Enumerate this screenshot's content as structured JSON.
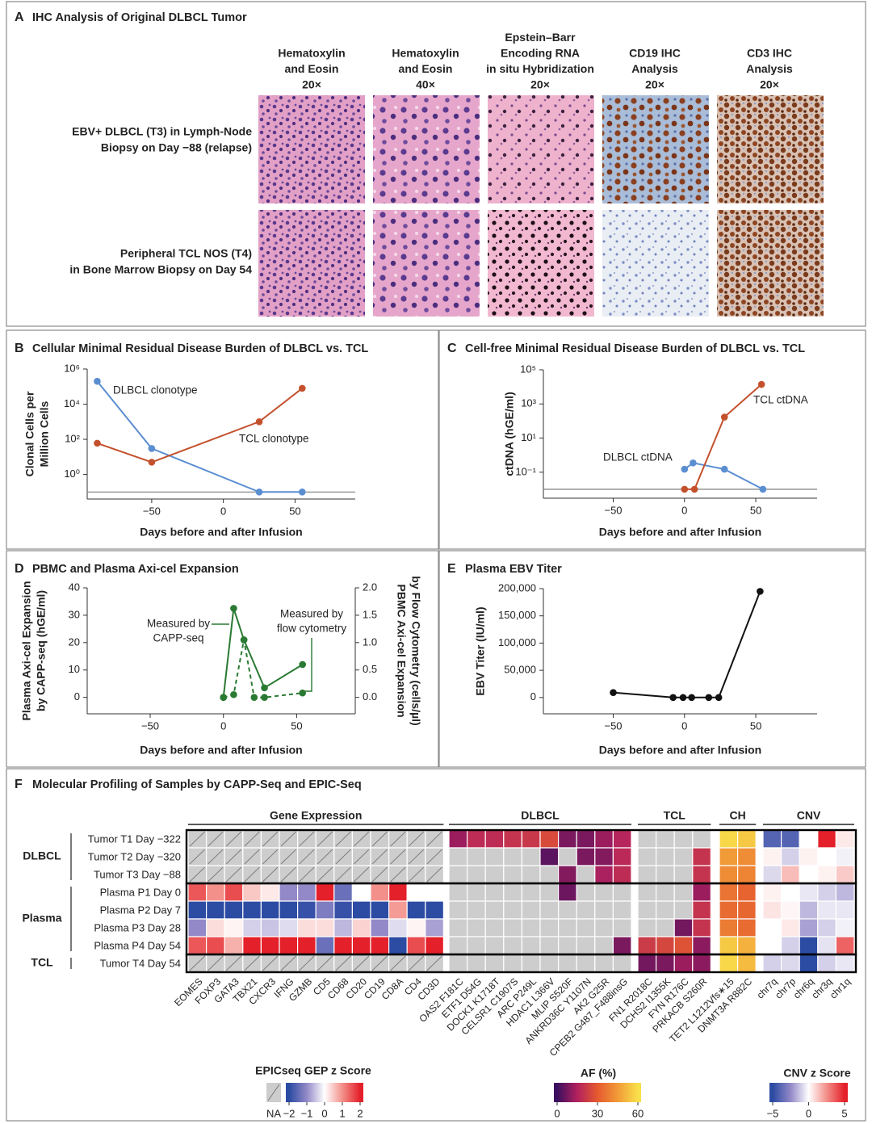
{
  "panel_a": {
    "letter": "A",
    "title": "IHC Analysis of Original DLBCL Tumor",
    "columns": [
      [
        "Hematoxylin",
        "and Eosin",
        "20×"
      ],
      [
        "Hematoxylin",
        "and Eosin",
        "40×"
      ],
      [
        "Epstein–Barr",
        "Encoding RNA",
        "in situ Hybridization",
        "20×"
      ],
      [
        "CD19 IHC",
        "Analysis",
        "20×"
      ],
      [
        "CD3 IHC",
        "Analysis",
        "20×"
      ]
    ],
    "rows": [
      [
        "EBV+ DLBCL (T3) in Lymph-Node",
        "Biopsy on Day −88 (relapse)"
      ],
      [
        "Peripheral TCL NOS (T4)",
        "in Bone Marrow Biopsy on Day 54"
      ]
    ]
  },
  "chart_data": [
    {
      "type": "line",
      "panel": "B",
      "title": "Cellular Minimal Residual Disease Burden of DLBCL vs. TCL",
      "xlabel": "Days before and after Infusion",
      "ylabel": [
        "Clonal Cells per",
        "Million Cells"
      ],
      "xlim": [
        -95,
        92
      ],
      "xticks": [
        {
          "value": -50,
          "label": "−50"
        },
        0,
        50
      ],
      "yscale": "log",
      "ylim": [
        0.04,
        1000000
      ],
      "yticks": [
        {
          "value": 1,
          "label": "10⁰"
        },
        {
          "value": 100,
          "label": "10²"
        },
        {
          "value": 10000,
          "label": "10⁴"
        },
        {
          "value": 1000000,
          "label": "10⁶"
        }
      ],
      "hline": 0.1,
      "series": [
        {
          "name": "DLBCL clonotype",
          "color": "#5b8ed1",
          "x": [
            -88,
            -50,
            25,
            55
          ],
          "values": [
            200000,
            30,
            0.1,
            0.1
          ]
        },
        {
          "name": "TCL clonotype",
          "color": "#c4512d",
          "x": [
            -88,
            -50,
            25,
            55
          ],
          "values": [
            60,
            5,
            1000,
            80000
          ]
        }
      ]
    },
    {
      "type": "line",
      "panel": "C",
      "title": "Cell-free Minimal Residual Disease Burden of DLBCL vs. TCL",
      "xlabel": "Days before and after Infusion",
      "ylabel": [
        "ctDNA (hGE/ml)"
      ],
      "xlim": [
        -99,
        93
      ],
      "xticks": [
        {
          "value": -50,
          "label": "−50"
        },
        0,
        50
      ],
      "yscale": "log",
      "ylim": [
        0.003,
        100000
      ],
      "yticks": [
        {
          "value": 0.1,
          "label": "10⁻¹"
        },
        {
          "value": 10,
          "label": "10¹"
        },
        {
          "value": 1000,
          "label": "10³"
        },
        {
          "value": 100000,
          "label": "10⁵"
        }
      ],
      "hline": 0.01,
      "series": [
        {
          "name": "DLBCL ctDNA",
          "color": "#5b8ed1",
          "x": [
            0,
            6,
            28,
            55
          ],
          "values": [
            0.15,
            0.35,
            0.15,
            0.01
          ]
        },
        {
          "name": "TCL ctDNA",
          "color": "#c4512d",
          "x": [
            0,
            7,
            28,
            54
          ],
          "values": [
            0.01,
            0.01,
            170,
            14000
          ]
        }
      ]
    },
    {
      "type": "line",
      "panel": "D",
      "title": "PBMC and Plasma Axi-cel Expansion",
      "xlabel": "Days before and after Infusion",
      "ylabel": [
        "Plasma Axi-cel Expansion",
        "by CAPP-seq (hGE/ml)"
      ],
      "y2label": [
        "PBMC Axi-cel Expansion",
        "by Flow Cytometry (cells/µl)"
      ],
      "xlim": [
        -93,
        90
      ],
      "xticks": [
        {
          "value": -50,
          "label": "−50"
        },
        0,
        50
      ],
      "ylim": [
        -6,
        40
      ],
      "yticks": [
        0,
        10,
        20,
        30,
        40
      ],
      "y2lim": [
        -0.3,
        2.0
      ],
      "y2ticks": [
        {
          "value": 0,
          "label": "0.0"
        },
        {
          "value": 0.5,
          "label": "0.5"
        },
        {
          "value": 1,
          "label": "1.0"
        },
        {
          "value": 1.5,
          "label": "1.5"
        },
        {
          "value": 2,
          "label": "2.0"
        }
      ],
      "series": [
        {
          "label": [
            "Measured by",
            "CAPP-seq"
          ],
          "color": "#2a7a33",
          "x": [
            0,
            7,
            14,
            28,
            54
          ],
          "values": [
            0,
            32.5,
            21,
            3.5,
            12
          ]
        },
        {
          "label": [
            "Measured by",
            "flow cytometry"
          ],
          "color": "#2a7a33",
          "dash": true,
          "axis": "y2",
          "x": [
            0,
            7,
            14,
            21,
            28,
            54
          ],
          "values": [
            0,
            0.05,
            1.05,
            0,
            0,
            0.08
          ]
        }
      ]
    },
    {
      "type": "line",
      "panel": "E",
      "title": "Plasma EBV Titer",
      "xlabel": "Days before and after Infusion",
      "ylabel": [
        "EBV Titer (IU/ml)"
      ],
      "xlim": [
        -99,
        93
      ],
      "xticks": [
        {
          "value": -50,
          "label": "−50"
        },
        0,
        50
      ],
      "ylim": [
        -30000,
        200000
      ],
      "yticks": [
        0,
        {
          "value": 50000,
          "label": "50,000"
        },
        {
          "value": 100000,
          "label": "100,000"
        },
        {
          "value": 150000,
          "label": "150,000"
        },
        {
          "value": 200000,
          "label": "200,000"
        }
      ],
      "series": [
        {
          "color": "#111111",
          "x": [
            -50,
            -8,
            -1,
            5,
            17,
            24,
            53
          ],
          "values": [
            9000,
            0,
            0,
            0,
            0,
            0,
            195000
          ]
        }
      ]
    },
    {
      "type": "heatmap",
      "panel": "F",
      "title": "Molecular Profiling of Samples by CAPP-Seq and EPIC-Seq",
      "null_color": "#cdcdcd",
      "row_groups": [
        {
          "name": "DLBCL",
          "rows": [
            "Tumor T1 Day −322",
            "Tumor T2 Day −320",
            "Tumor T3 Day −88"
          ]
        },
        {
          "name": "Plasma",
          "rows": [
            "Plasma P1 Day 0",
            "Plasma P2 Day 7",
            "Plasma P3 Day 28",
            "Plasma P4 Day 54"
          ]
        },
        {
          "name": "TCL",
          "rows": [
            "Tumor T4 Day 54"
          ]
        }
      ],
      "column_groups": [
        {
          "name": "Gene Expression",
          "scale": 0,
          "hatch_null": true,
          "columns": [
            "EOMES",
            "FOXP3",
            "GATA3",
            "TBX21",
            "CXCR3",
            "IFNG",
            "GZMB",
            "CD5",
            "CD68",
            "CD20",
            "CD19",
            "CD8A",
            "CD4",
            "CD3D"
          ],
          "values": [
            [
              null,
              null,
              null,
              null,
              null,
              null,
              null,
              null,
              null,
              null,
              null,
              null,
              null,
              null
            ],
            [
              null,
              null,
              null,
              null,
              null,
              null,
              null,
              null,
              null,
              null,
              null,
              null,
              null,
              null
            ],
            [
              null,
              null,
              null,
              null,
              null,
              null,
              null,
              null,
              null,
              null,
              null,
              null,
              null,
              null
            ],
            [
              1.5,
              1.0,
              1.6,
              0.5,
              0.2,
              -1.0,
              -1.0,
              2.4,
              -1.4,
              0.0,
              1.0,
              2.2,
              0.0,
              0.0
            ],
            [
              -2.0,
              -2.0,
              -2.0,
              -2.0,
              -2.0,
              -2.0,
              -1.9,
              -1.2,
              -1.9,
              -2.0,
              -2.0,
              0.9,
              -2.0,
              -2.0
            ],
            [
              -1.0,
              0.3,
              0.1,
              -0.4,
              -0.5,
              -0.3,
              0.3,
              0.3,
              -0.6,
              0.4,
              -1.0,
              -0.3,
              0.1,
              -0.8
            ],
            [
              1.5,
              1.6,
              0.7,
              2.1,
              2.1,
              2.0,
              2.0,
              -1.4,
              2.0,
              2.1,
              2.0,
              -2.0,
              1.6,
              2.1
            ],
            [
              null,
              null,
              null,
              null,
              null,
              null,
              null,
              null,
              null,
              null,
              null,
              null,
              null,
              null
            ]
          ]
        },
        {
          "name": "DLBCL",
          "scale": 1,
          "columns": [
            "OAS2 F181C",
            "ETF1 D54G",
            "DOCK1 K1718T",
            "CELSR1 C1907S",
            "ARC P249L",
            "HDAC1 L366V",
            "MLIP S520F",
            "ANKRD36C Y1107N",
            "AK2 G25R",
            "CPEB2 G487_F488insG"
          ],
          "values": [
            [
              12,
              18,
              18,
              20,
              21,
              26,
              8,
              8,
              12,
              16
            ],
            [
              null,
              null,
              null,
              null,
              null,
              4,
              null,
              8,
              9,
              17
            ],
            [
              null,
              null,
              null,
              null,
              null,
              null,
              9,
              null,
              14,
              18
            ],
            [
              null,
              null,
              null,
              null,
              null,
              null,
              6,
              null,
              null,
              null
            ],
            [
              null,
              null,
              null,
              null,
              null,
              null,
              null,
              null,
              null,
              null
            ],
            [
              null,
              null,
              null,
              null,
              null,
              null,
              null,
              null,
              null,
              null
            ],
            [
              null,
              null,
              null,
              null,
              null,
              null,
              null,
              null,
              null,
              8
            ],
            [
              null,
              null,
              null,
              null,
              null,
              null,
              null,
              null,
              null,
              null
            ]
          ]
        },
        {
          "name": "TCL",
          "scale": 1,
          "columns": [
            "FN1 R2018C",
            "DCHS2 I1355K",
            "FYN R176C",
            "PRKACB S260R"
          ],
          "values": [
            [
              null,
              null,
              null,
              null
            ],
            [
              null,
              null,
              null,
              20
            ],
            [
              null,
              null,
              null,
              20
            ],
            [
              null,
              null,
              null,
              12
            ],
            [
              null,
              null,
              null,
              20
            ],
            [
              null,
              null,
              7,
              20
            ],
            [
              22,
              25,
              28,
              10
            ],
            [
              7,
              8,
              12,
              10
            ]
          ]
        },
        {
          "name": "CH",
          "scale": 1,
          "columns": [
            "TET2 L1212Vfs∗15",
            "DNMT3A R882C"
          ],
          "values": [
            [
              58,
              55
            ],
            [
              45,
              42
            ],
            [
              42,
              40
            ],
            [
              36,
              32
            ],
            [
              34,
              33
            ],
            [
              38,
              34
            ],
            [
              55,
              50
            ],
            [
              58,
              52
            ]
          ]
        },
        {
          "name": "CNV",
          "scale": 2,
          "columns": [
            "chr7q",
            "chr7p",
            "chr6q",
            "chr3q",
            "chr1q"
          ],
          "values": [
            [
              -4,
              -4,
              0,
              5,
              0.5
            ],
            [
              0.3,
              -1,
              0.3,
              0,
              -0.3
            ],
            [
              -0.8,
              1.5,
              0,
              0.3,
              1.2
            ],
            [
              0.3,
              0,
              -0.5,
              -1,
              -1.5
            ],
            [
              0.6,
              0.2,
              -1.5,
              -0.5,
              -0.5
            ],
            [
              0,
              0.5,
              -2,
              -1,
              -0.3
            ],
            [
              0,
              -1,
              -5,
              -0.6,
              3.5
            ],
            [
              -1,
              -0.8,
              -5,
              -1,
              -0.5
            ]
          ]
        }
      ],
      "colorbars": [
        {
          "title": "EPICseq GEP z Score",
          "na_label": "NA",
          "stops": [
            {
              "value": -2,
              "color": "#2c4ba3"
            },
            {
              "value": -1,
              "color": "#9389c8"
            },
            {
              "value": 0,
              "color": "#ffffff"
            },
            {
              "value": 1,
              "color": "#f3908a"
            },
            {
              "value": 2,
              "color": "#e4202a"
            }
          ],
          "ticks": [
            {
              "value": -2,
              "label": "−2"
            },
            {
              "value": -1,
              "label": "−1"
            },
            0,
            1,
            2
          ]
        },
        {
          "title": "AF (%)",
          "stops": [
            {
              "value": 0,
              "color": "#3b0f5f"
            },
            {
              "value": 15,
              "color": "#b3215e"
            },
            {
              "value": 30,
              "color": "#e55a2f"
            },
            {
              "value": 45,
              "color": "#f19a38"
            },
            {
              "value": 60,
              "color": "#f9e04b"
            }
          ],
          "ticks": [
            0,
            30,
            60
          ]
        },
        {
          "title": "CNV z Score",
          "stops": [
            {
              "value": -5,
              "color": "#2c4ba3"
            },
            {
              "value": -2.5,
              "color": "#9389c8"
            },
            {
              "value": 0,
              "color": "#ffffff"
            },
            {
              "value": 2.5,
              "color": "#f3908a"
            },
            {
              "value": 5,
              "color": "#e4202a"
            }
          ],
          "ticks": [
            {
              "value": -5,
              "label": "−5"
            },
            0,
            5
          ]
        }
      ]
    }
  ]
}
